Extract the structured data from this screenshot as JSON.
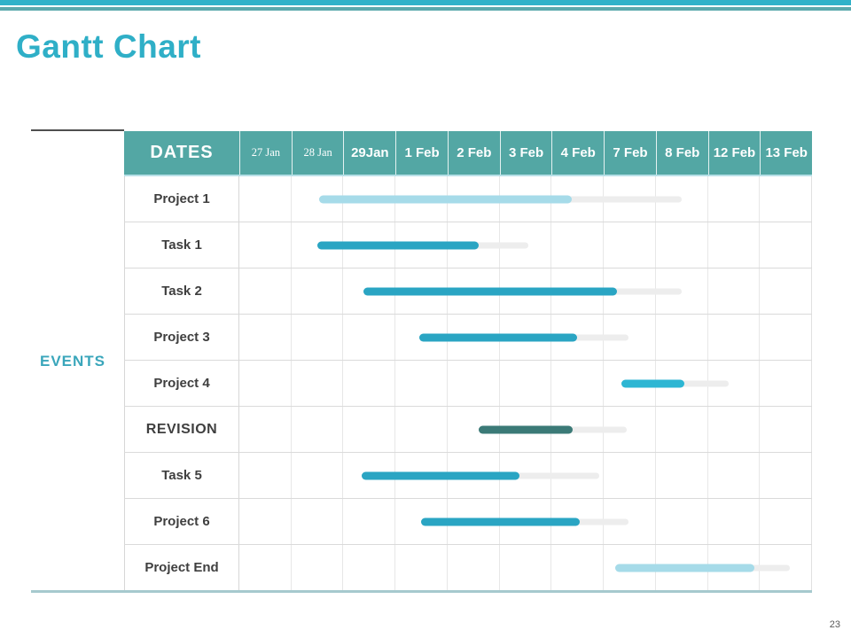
{
  "slide": {
    "title": "Gantt Chart",
    "events_label": "EVENTS",
    "page_number": "23"
  },
  "colors": {
    "accent_bright": "#31b2c9",
    "accent_muted": "#5ca9ad",
    "title_text": "#2fafc7",
    "header_bg": "#53a7a4",
    "header_text": "#ffffff",
    "bar_standard": "#2aa5c3",
    "bar_bright": "#2db6d3",
    "bar_dark": "#3b7a77",
    "bar_light": "#a6dbe9",
    "bar_track": "#ededed",
    "events_text": "#3aa6bb",
    "bottom_rule": "#a6c9ce"
  },
  "chart_data": {
    "type": "bar",
    "variant": "gantt",
    "title": "Gantt Chart",
    "header_label": "DATES",
    "row_axis_label": "EVENTS",
    "columns": [
      "27 Jan",
      "28 Jan",
      "29Jan",
      "1 Feb",
      "2 Feb",
      "3 Feb",
      "4 Feb",
      "7 Feb",
      "8 Feb",
      "12 Feb",
      "13 Feb"
    ],
    "serif_columns": [
      0,
      1
    ],
    "grid": true,
    "rows": [
      {
        "label": "Project 1",
        "color": "light",
        "start_pct": 13.93,
        "bar_pct": 44.27,
        "track_pct": 63.47,
        "start_est": "28 Jan",
        "end_est": "4 Feb",
        "emphasis": false
      },
      {
        "label": "Task 1",
        "color": "standard",
        "start_pct": 13.62,
        "bar_pct": 28.17,
        "track_pct": 37.0,
        "start_est": "28 Jan",
        "end_est": "2 Feb",
        "emphasis": false
      },
      {
        "label": "Task 2",
        "color": "standard",
        "start_pct": 21.67,
        "bar_pct": 44.43,
        "track_pct": 55.73,
        "start_est": "29Jan",
        "end_est": "7 Feb",
        "emphasis": false
      },
      {
        "label": "Project 3",
        "color": "standard",
        "start_pct": 31.42,
        "bar_pct": 27.71,
        "track_pct": 36.69,
        "start_est": "1 Feb",
        "end_est": "4 Feb",
        "emphasis": false
      },
      {
        "label": "Project 4",
        "color": "bright",
        "start_pct": 66.87,
        "bar_pct": 10.99,
        "track_pct": 18.73,
        "start_est": "7 Feb",
        "end_est": "8 Feb",
        "emphasis": false
      },
      {
        "label": "REVISION",
        "color": "dark",
        "start_pct": 41.8,
        "bar_pct": 16.56,
        "track_pct": 26.01,
        "start_est": "2 Feb",
        "end_est": "4 Feb",
        "emphasis": true
      },
      {
        "label": "Task 5",
        "color": "standard",
        "start_pct": 21.36,
        "bar_pct": 27.71,
        "track_pct": 41.64,
        "start_est": "29Jan",
        "end_est": "3 Feb",
        "emphasis": false
      },
      {
        "label": "Project 6",
        "color": "standard",
        "start_pct": 31.73,
        "bar_pct": 27.86,
        "track_pct": 36.38,
        "start_est": "1 Feb",
        "end_est": "4 Feb",
        "emphasis": false
      },
      {
        "label": "Project End",
        "color": "light",
        "start_pct": 65.79,
        "bar_pct": 24.3,
        "track_pct": 30.5,
        "start_est": "7 Feb",
        "end_est": "12 Feb",
        "emphasis": false
      }
    ]
  }
}
